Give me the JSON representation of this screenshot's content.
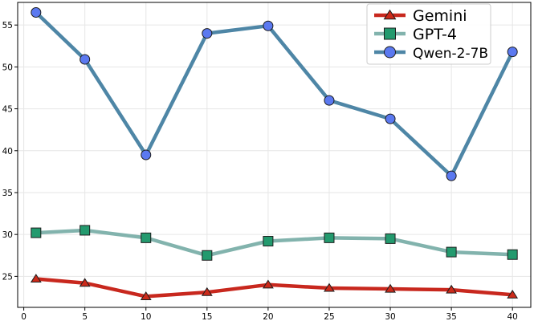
{
  "chart_data": {
    "type": "line",
    "title": "",
    "xlabel": "",
    "ylabel": "",
    "x": [
      1,
      5,
      10,
      15,
      20,
      25,
      30,
      35,
      40
    ],
    "xlim": [
      -0.5,
      41.5
    ],
    "ylim": [
      21.3,
      57.7
    ],
    "xticks": [
      0,
      5,
      10,
      15,
      20,
      25,
      30,
      35,
      40
    ],
    "yticks": [
      25,
      30,
      35,
      40,
      45,
      50,
      55
    ],
    "grid": true,
    "legend_position": "top-right",
    "series": [
      {
        "name": "Gemini",
        "marker": "triangle",
        "line_color": "#c8281e",
        "marker_color": "#cc2a1a",
        "values": [
          24.7,
          24.2,
          22.6,
          23.1,
          24.0,
          23.6,
          23.5,
          23.4,
          22.8
        ]
      },
      {
        "name": "GPT-4",
        "marker": "square",
        "line_color": "#82b3ad",
        "marker_color": "#239a6e",
        "values": [
          30.2,
          30.5,
          29.6,
          27.5,
          29.2,
          29.6,
          29.5,
          27.9,
          27.6
        ]
      },
      {
        "name": "Qwen-2-7B",
        "marker": "circle",
        "line_color": "#4e86a6",
        "marker_color": "#5b79f0",
        "values": [
          56.5,
          50.9,
          39.5,
          54.0,
          54.9,
          46.0,
          43.8,
          37.0,
          51.8
        ]
      }
    ]
  }
}
